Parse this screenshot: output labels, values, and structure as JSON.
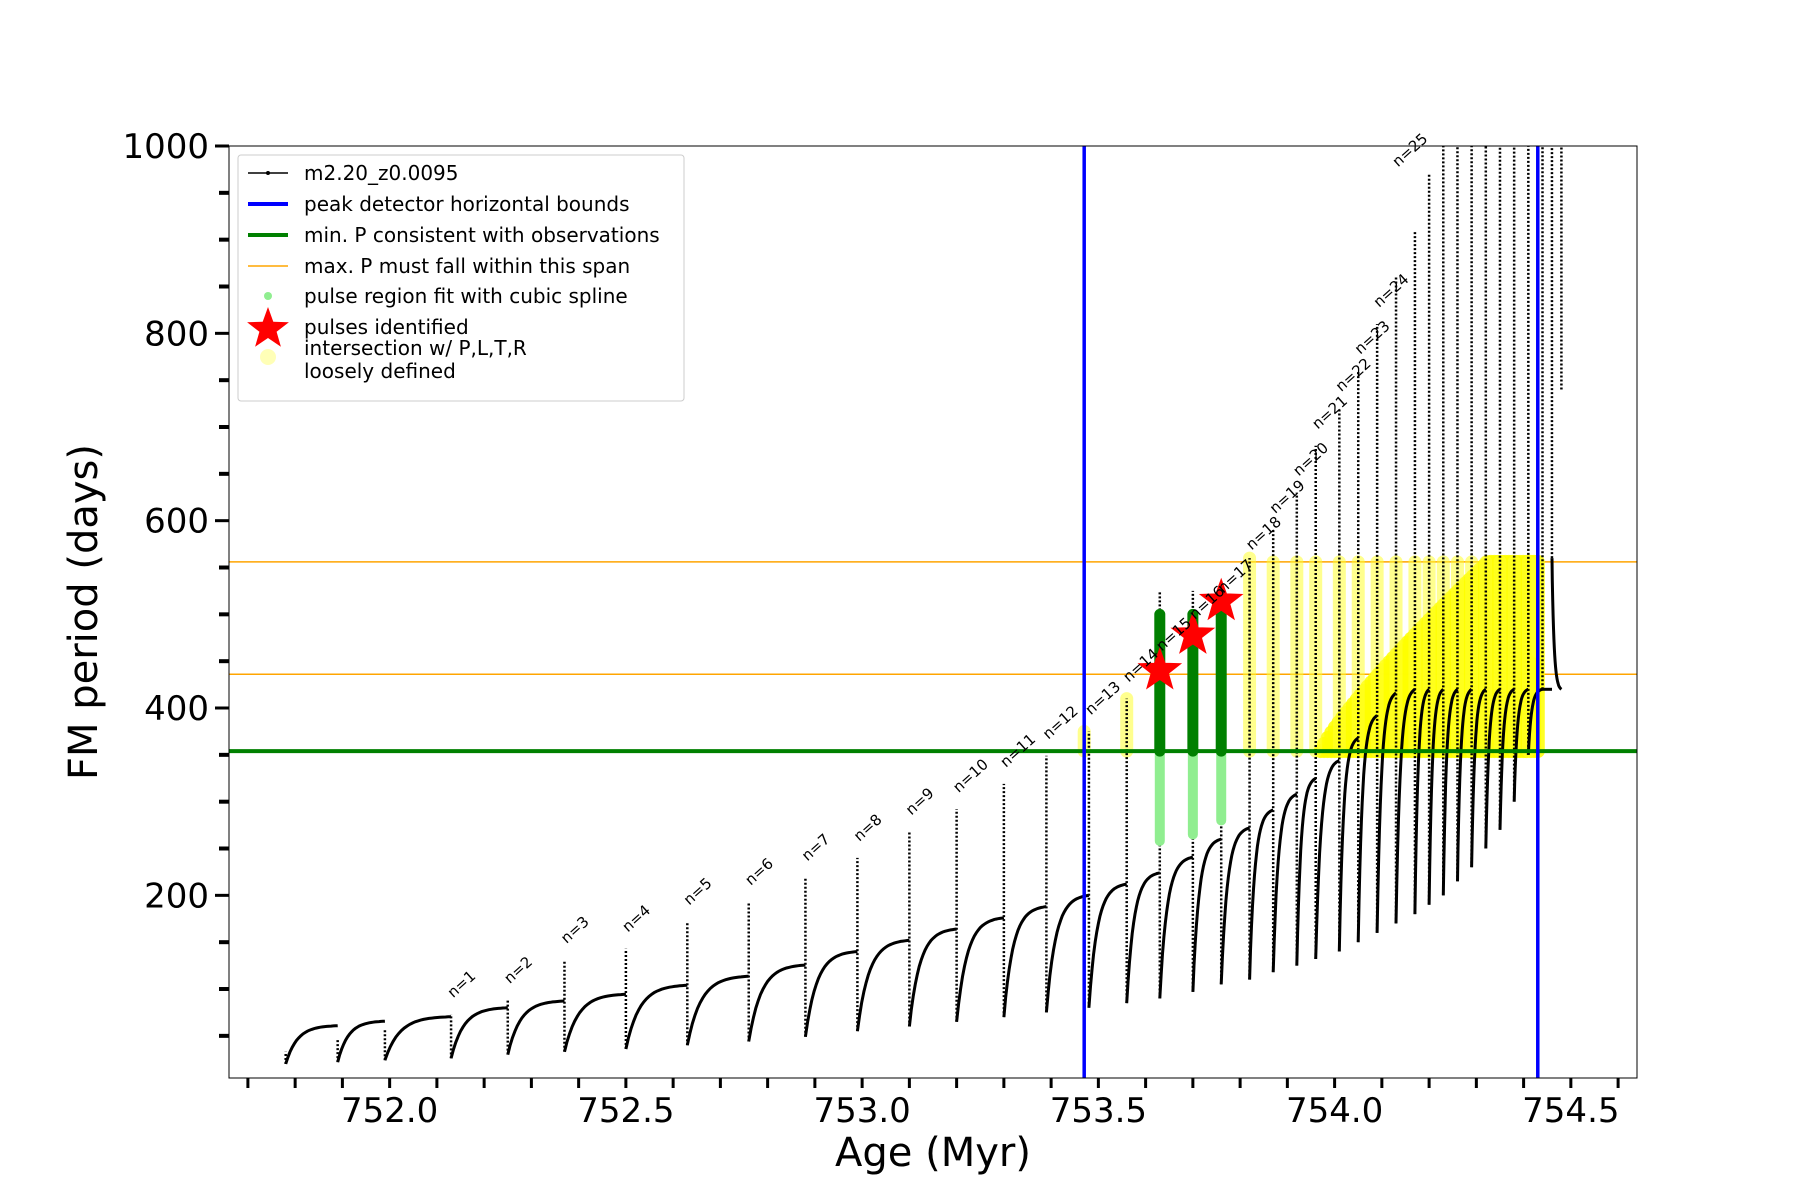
{
  "chart_data": {
    "type": "scatter",
    "xlabel": "Age (Myr)",
    "ylabel": "FM period (days)",
    "xlim": [
      751.66,
      754.64
    ],
    "ylim": [
      5,
      1000
    ],
    "x_ticks": [
      "752.0",
      "752.5",
      "753.0",
      "753.5",
      "754.0",
      "754.5"
    ],
    "x_tick_values": [
      752.0,
      752.5,
      753.0,
      753.5,
      754.0,
      754.5
    ],
    "y_ticks": [
      "200",
      "400",
      "600",
      "800",
      "1000"
    ],
    "y_tick_values": [
      200,
      400,
      600,
      800,
      1000
    ],
    "grid": false,
    "legend_position": "top-left",
    "legend": [
      {
        "label": "m2.20_z0.0095",
        "marker": "line-dot",
        "color": "#000000"
      },
      {
        "label": "peak detector horizontal bounds",
        "marker": "line",
        "color": "#0000ff"
      },
      {
        "label": "min. P consistent with observations",
        "marker": "line",
        "color": "#008000"
      },
      {
        "label": "max. P must fall within this span",
        "marker": "thin-line",
        "color": "#ffa500"
      },
      {
        "label": "pulse region fit with cubic spline",
        "marker": "dot",
        "color": "#90ee90"
      },
      {
        "label": "pulses identified",
        "marker": "star",
        "color": "#ff0000"
      },
      {
        "label": "intersection w/ P,L,T,R\nloosely defined",
        "marker": "dot",
        "color": "#ffff99"
      }
    ],
    "reference_lines": {
      "vertical_blue": [
        753.47,
        754.43
      ],
      "horizontal_green": 354,
      "horizontal_orange": [
        436,
        556
      ]
    },
    "series": [
      {
        "name": "m2.20_z0.0095",
        "kind": "pulse_track",
        "color": "#000000",
        "pulses": [
          {
            "x": 751.78,
            "p_min": 20,
            "p_peak": 33
          },
          {
            "x": 751.89,
            "p_min": 22,
            "p_peak": 47
          },
          {
            "x": 751.99,
            "p_min": 24,
            "p_peak": 57
          },
          {
            "x": 752.13,
            "p_min": 26,
            "p_peak": 73
          },
          {
            "x": 752.25,
            "p_min": 30,
            "p_peak": 88
          },
          {
            "x": 752.37,
            "p_min": 33,
            "p_peak": 131
          },
          {
            "x": 752.5,
            "p_min": 36,
            "p_peak": 143
          },
          {
            "x": 752.63,
            "p_min": 40,
            "p_peak": 172
          },
          {
            "x": 752.76,
            "p_min": 44,
            "p_peak": 193
          },
          {
            "x": 752.88,
            "p_min": 49,
            "p_peak": 219
          },
          {
            "x": 752.99,
            "p_min": 55,
            "p_peak": 240
          },
          {
            "x": 753.1,
            "p_min": 60,
            "p_peak": 268
          },
          {
            "x": 753.2,
            "p_min": 65,
            "p_peak": 292
          },
          {
            "x": 753.3,
            "p_min": 70,
            "p_peak": 319
          },
          {
            "x": 753.39,
            "p_min": 75,
            "p_peak": 349
          },
          {
            "x": 753.48,
            "p_min": 80,
            "p_peak": 375
          },
          {
            "x": 753.56,
            "p_min": 85,
            "p_peak": 410
          },
          {
            "x": 753.63,
            "p_min": 90,
            "p_peak": 525
          },
          {
            "x": 753.7,
            "p_min": 97,
            "p_peak": 525
          },
          {
            "x": 753.76,
            "p_min": 105,
            "p_peak": 530
          },
          {
            "x": 753.82,
            "p_min": 110,
            "p_peak": 560
          },
          {
            "x": 753.87,
            "p_min": 118,
            "p_peak": 590
          },
          {
            "x": 753.92,
            "p_min": 125,
            "p_peak": 630
          },
          {
            "x": 753.96,
            "p_min": 132,
            "p_peak": 680
          },
          {
            "x": 754.01,
            "p_min": 140,
            "p_peak": 720
          },
          {
            "x": 754.05,
            "p_min": 150,
            "p_peak": 760
          },
          {
            "x": 754.09,
            "p_min": 160,
            "p_peak": 810
          },
          {
            "x": 754.13,
            "p_min": 170,
            "p_peak": 860
          },
          {
            "x": 754.17,
            "p_min": 180,
            "p_peak": 910
          },
          {
            "x": 754.2,
            "p_min": 190,
            "p_peak": 970
          },
          {
            "x": 754.23,
            "p_min": 200,
            "p_peak": 1000
          },
          {
            "x": 754.26,
            "p_min": 215,
            "p_peak": 1000
          },
          {
            "x": 754.29,
            "p_min": 230,
            "p_peak": 1000
          },
          {
            "x": 754.32,
            "p_min": 250,
            "p_peak": 1000
          },
          {
            "x": 754.35,
            "p_min": 270,
            "p_peak": 1000
          },
          {
            "x": 754.38,
            "p_min": 300,
            "p_peak": 1000
          },
          {
            "x": 754.41,
            "p_min": 350,
            "p_peak": 1000
          },
          {
            "x": 754.44,
            "p_min": 420,
            "p_peak": 1000
          },
          {
            "x": 754.46,
            "p_min": 560,
            "p_peak": 1000
          },
          {
            "x": 754.48,
            "p_min": 740,
            "p_peak": 1000
          }
        ]
      },
      {
        "name": "pulse region fit with cubic spline",
        "kind": "vertical_bands",
        "color": "#90ee90",
        "bands": [
          {
            "x": 753.63,
            "y0": 258,
            "y1": 500
          },
          {
            "x": 753.7,
            "y0": 265,
            "y1": 500
          },
          {
            "x": 753.76,
            "y0": 280,
            "y1": 500
          }
        ]
      },
      {
        "name": "min. P consistent with observations",
        "kind": "vertical_bands",
        "color": "#008000",
        "bands": [
          {
            "x": 753.63,
            "y0": 354,
            "y1": 525
          },
          {
            "x": 753.7,
            "y0": 354,
            "y1": 525
          },
          {
            "x": 753.76,
            "y0": 354,
            "y1": 530
          }
        ]
      },
      {
        "name": "pulses identified",
        "kind": "stars",
        "color": "#ff0000",
        "points": [
          {
            "x": 753.63,
            "y": 440
          },
          {
            "x": 753.7,
            "y": 478
          },
          {
            "x": 753.76,
            "y": 514
          }
        ]
      },
      {
        "name": "intersection w/ P,L,T,R loosely defined",
        "kind": "vertical_bands",
        "color": "#ffff00",
        "bands": [
          {
            "x": 753.47,
            "y0": 354,
            "y1": 375
          },
          {
            "x": 753.56,
            "y0": 354,
            "y1": 410
          },
          {
            "x": 753.82,
            "y0": 354,
            "y1": 560
          },
          {
            "x": 753.87,
            "y0": 354,
            "y1": 556
          },
          {
            "x": 753.92,
            "y0": 354,
            "y1": 556
          },
          {
            "x": 753.96,
            "y0": 354,
            "y1": 556
          },
          {
            "x": 754.01,
            "y0": 354,
            "y1": 556
          },
          {
            "x": 754.05,
            "y0": 354,
            "y1": 556
          },
          {
            "x": 754.09,
            "y0": 354,
            "y1": 556
          },
          {
            "x": 754.13,
            "y0": 354,
            "y1": 556
          },
          {
            "x": 754.17,
            "y0": 354,
            "y1": 556
          },
          {
            "x": 754.2,
            "y0": 354,
            "y1": 556
          },
          {
            "x": 754.23,
            "y0": 354,
            "y1": 556
          },
          {
            "x": 754.26,
            "y0": 354,
            "y1": 556
          },
          {
            "x": 754.29,
            "y0": 354,
            "y1": 556
          },
          {
            "x": 754.32,
            "y0": 354,
            "y1": 556
          },
          {
            "x": 754.35,
            "y0": 354,
            "y1": 556
          },
          {
            "x": 754.38,
            "y0": 354,
            "y1": 556
          },
          {
            "x": 754.41,
            "y0": 354,
            "y1": 556
          },
          {
            "x": 754.43,
            "y0": 460,
            "y1": 556
          }
        ],
        "dense_region": {
          "x0": 753.97,
          "x1": 754.43,
          "y_min": 354,
          "y_max": 556
        }
      }
    ],
    "annotations": [
      {
        "text": "n=1",
        "x": 752.13,
        "y": 90
      },
      {
        "text": "n=2",
        "x": 752.25,
        "y": 105
      },
      {
        "text": "n=3",
        "x": 752.37,
        "y": 148
      },
      {
        "text": "n=4",
        "x": 752.5,
        "y": 160
      },
      {
        "text": "n=5",
        "x": 752.63,
        "y": 189
      },
      {
        "text": "n=6",
        "x": 752.76,
        "y": 210
      },
      {
        "text": "n=7",
        "x": 752.88,
        "y": 236
      },
      {
        "text": "n=8",
        "x": 752.99,
        "y": 257
      },
      {
        "text": "n=9",
        "x": 753.1,
        "y": 285
      },
      {
        "text": "n=10",
        "x": 753.2,
        "y": 309
      },
      {
        "text": "n=11",
        "x": 753.3,
        "y": 336
      },
      {
        "text": "n=12",
        "x": 753.39,
        "y": 366
      },
      {
        "text": "n=13",
        "x": 753.48,
        "y": 392
      },
      {
        "text": "n=14",
        "x": 753.56,
        "y": 427
      },
      {
        "text": "n=15",
        "x": 753.63,
        "y": 460
      },
      {
        "text": "n=16",
        "x": 753.7,
        "y": 494
      },
      {
        "text": "n=17",
        "x": 753.76,
        "y": 522
      },
      {
        "text": "n=18",
        "x": 753.82,
        "y": 568
      },
      {
        "text": "n=19",
        "x": 753.87,
        "y": 607
      },
      {
        "text": "n=20",
        "x": 753.92,
        "y": 647
      },
      {
        "text": "n=21",
        "x": 753.96,
        "y": 697
      },
      {
        "text": "n=22",
        "x": 754.01,
        "y": 737
      },
      {
        "text": "n=23",
        "x": 754.05,
        "y": 777
      },
      {
        "text": "n=24",
        "x": 754.09,
        "y": 827
      },
      {
        "text": "n=25",
        "x": 754.13,
        "y": 977
      }
    ]
  }
}
